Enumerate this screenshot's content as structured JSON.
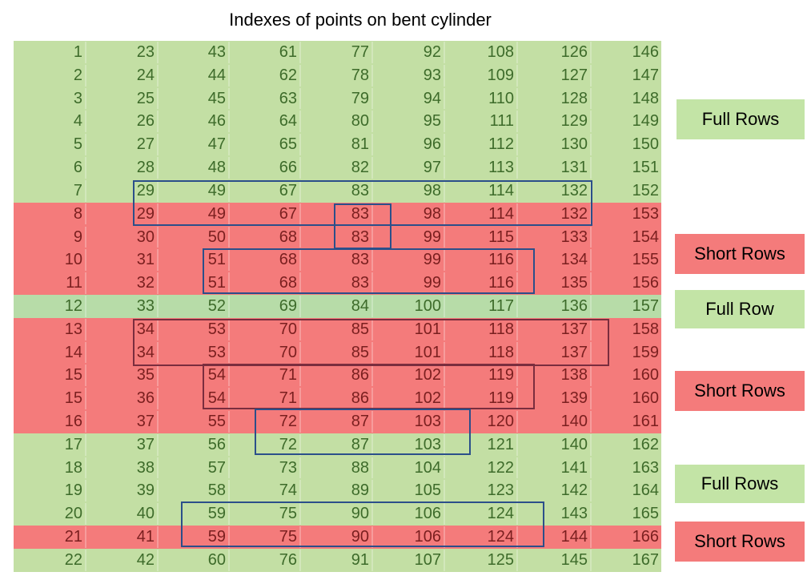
{
  "title": "Indexes of points on bent cylinder",
  "row_colors": {
    "full": "#c3dfa4",
    "short": "#f47b7b"
  },
  "rows": [
    {
      "type": "full",
      "values": [
        1,
        23,
        43,
        61,
        77,
        92,
        108,
        126,
        146
      ]
    },
    {
      "type": "full",
      "values": [
        2,
        24,
        44,
        62,
        78,
        93,
        109,
        127,
        147
      ]
    },
    {
      "type": "full",
      "values": [
        3,
        25,
        45,
        63,
        79,
        94,
        110,
        128,
        148
      ]
    },
    {
      "type": "full",
      "values": [
        4,
        26,
        46,
        64,
        80,
        95,
        111,
        129,
        149
      ]
    },
    {
      "type": "full",
      "values": [
        5,
        27,
        47,
        65,
        81,
        96,
        112,
        130,
        150
      ]
    },
    {
      "type": "full",
      "values": [
        6,
        28,
        48,
        66,
        82,
        97,
        113,
        131,
        151
      ]
    },
    {
      "type": "full",
      "values": [
        7,
        29,
        49,
        67,
        83,
        98,
        114,
        132,
        152
      ]
    },
    {
      "type": "short",
      "values": [
        8,
        29,
        49,
        67,
        83,
        98,
        114,
        132,
        153
      ]
    },
    {
      "type": "short",
      "values": [
        9,
        30,
        50,
        68,
        83,
        99,
        115,
        133,
        154
      ]
    },
    {
      "type": "short",
      "values": [
        10,
        31,
        51,
        68,
        83,
        99,
        116,
        134,
        155
      ]
    },
    {
      "type": "short",
      "values": [
        11,
        32,
        51,
        68,
        83,
        99,
        116,
        135,
        156
      ]
    },
    {
      "type": "full",
      "values": [
        12,
        33,
        52,
        69,
        84,
        100,
        117,
        136,
        157
      ]
    },
    {
      "type": "short",
      "values": [
        13,
        34,
        53,
        70,
        85,
        101,
        118,
        137,
        158
      ]
    },
    {
      "type": "short",
      "values": [
        14,
        34,
        53,
        70,
        85,
        101,
        118,
        137,
        159
      ]
    },
    {
      "type": "short",
      "values": [
        15,
        35,
        54,
        71,
        86,
        102,
        119,
        138,
        160
      ]
    },
    {
      "type": "short",
      "values": [
        15,
        36,
        54,
        71,
        86,
        102,
        119,
        139,
        160
      ]
    },
    {
      "type": "short",
      "values": [
        16,
        37,
        55,
        72,
        87,
        103,
        120,
        140,
        161
      ]
    },
    {
      "type": "full",
      "values": [
        17,
        37,
        56,
        72,
        87,
        103,
        121,
        140,
        162
      ]
    },
    {
      "type": "full",
      "values": [
        18,
        38,
        57,
        73,
        88,
        104,
        122,
        141,
        163
      ]
    },
    {
      "type": "full",
      "values": [
        19,
        39,
        58,
        74,
        89,
        105,
        123,
        142,
        164
      ]
    },
    {
      "type": "full",
      "values": [
        20,
        40,
        59,
        75,
        90,
        106,
        124,
        143,
        165
      ]
    },
    {
      "type": "short",
      "values": [
        21,
        41,
        59,
        75,
        90,
        106,
        124,
        144,
        166
      ]
    },
    {
      "type": "full",
      "values": [
        22,
        42,
        60,
        76,
        91,
        107,
        125,
        145,
        167
      ]
    }
  ],
  "legend": [
    {
      "label": "Full Rows",
      "type": "full"
    },
    {
      "label": "Short Rows",
      "type": "short"
    },
    {
      "label": "Full Row",
      "type": "full"
    },
    {
      "label": "Short Rows",
      "type": "short"
    },
    {
      "label": "Full Rows",
      "type": "full"
    },
    {
      "label": "Short Rows",
      "type": "short"
    }
  ]
}
